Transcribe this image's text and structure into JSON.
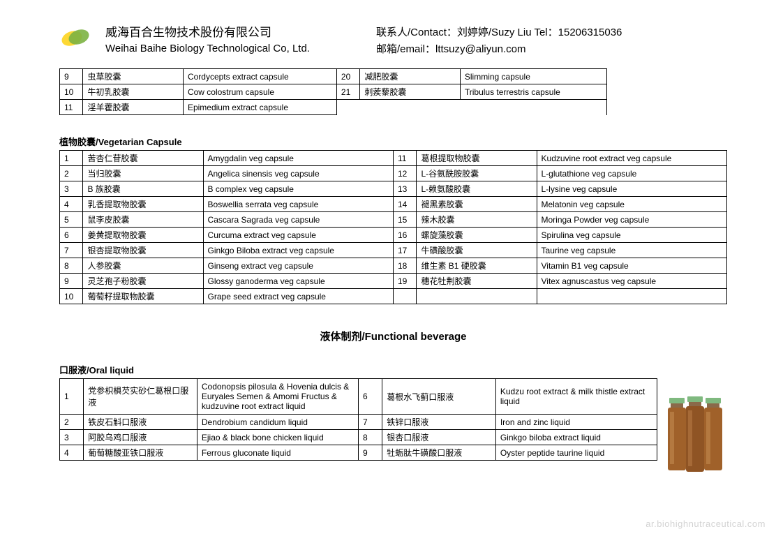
{
  "header": {
    "company_cn": "威海百合生物技术股份有限公司",
    "company_en": "Weihai Baihe Biology Technological Co, Ltd.",
    "contact_line1": "联系人/Contact：刘婷婷/Suzy Liu  Tel：15206315036",
    "contact_line2": "邮箱/email：lttsuzy@aliyun.com"
  },
  "table1": {
    "rows": [
      {
        "n1": "9",
        "cn1": "虫草胶囊",
        "en1": "Cordycepts extract capsule",
        "n2": "20",
        "cn2": "减肥胶囊",
        "en2": "Slimming capsule"
      },
      {
        "n1": "10",
        "cn1": "牛初乳胶囊",
        "en1": "Cow colostrum capsule",
        "n2": "21",
        "cn2": "刺蒺藜胶囊",
        "en2": "Tribulus terrestris capsule"
      },
      {
        "n1": "11",
        "cn1": "淫羊藿胶囊",
        "en1": "Epimedium extract capsule",
        "n2": "",
        "cn2": "",
        "en2": ""
      }
    ]
  },
  "section2_title": "植物胶囊/Vegetarian Capsule",
  "table2": {
    "rows": [
      {
        "n1": "1",
        "cn1": "苦杏仁苷胶囊",
        "en1": "Amygdalin veg capsule",
        "n2": "11",
        "cn2": "葛根提取物胶囊",
        "en2": "Kudzuvine root extract veg capsule"
      },
      {
        "n1": "2",
        "cn1": "当归胶囊",
        "en1": "Angelica sinensis veg capsule",
        "n2": "12",
        "cn2": "L-谷氨酰胺胶囊",
        "en2": "L-glutathione veg capsule"
      },
      {
        "n1": "3",
        "cn1": "B 族胶囊",
        "en1": "B complex veg capsule",
        "n2": "13",
        "cn2": "L-赖氨酸胶囊",
        "en2": "L-lysine veg capsule"
      },
      {
        "n1": "4",
        "cn1": "乳香提取物胶囊",
        "en1": "Boswellia serrata veg capsule",
        "n2": "14",
        "cn2": "褪黑素胶囊",
        "en2": "Melatonin veg capsule"
      },
      {
        "n1": "5",
        "cn1": "鼠李皮胶囊",
        "en1": "Cascara Sagrada veg capsule",
        "n2": "15",
        "cn2": "辣木胶囊",
        "en2": "Moringa Powder veg capsule"
      },
      {
        "n1": "6",
        "cn1": "姜黄提取物胶囊",
        "en1": "Curcuma extract veg capsule",
        "n2": "16",
        "cn2": "螺旋藻胶囊",
        "en2": "Spirulina veg capsule"
      },
      {
        "n1": "7",
        "cn1": "银杏提取物胶囊",
        "en1": "Ginkgo Biloba extract veg capsule",
        "n2": "17",
        "cn2": "牛磺酸胶囊",
        "en2": "Taurine veg capsule"
      },
      {
        "n1": "8",
        "cn1": "人参胶囊",
        "en1": "Ginseng extract veg capsule",
        "n2": "18",
        "cn2": "维生素 B1 硬胶囊",
        "en2": "Vitamin B1 veg capsule"
      },
      {
        "n1": "9",
        "cn1": "灵芝孢子粉胶囊",
        "en1": "Glossy ganoderma veg capsule",
        "n2": "19",
        "cn2": "穗花牡荆胶囊",
        "en2": "Vitex agnuscastus veg capsule"
      },
      {
        "n1": "10",
        "cn1": "葡萄籽提取物胶囊",
        "en1": "Grape seed extract veg capsule",
        "n2": "",
        "cn2": "",
        "en2": ""
      }
    ]
  },
  "main_heading": "液体制剂/Functional beverage",
  "section3_title": "口服液/Oral liquid",
  "table3": {
    "rows": [
      {
        "n1": "1",
        "cn1": "党参枳椇芡实砂仁葛根口服液",
        "en1": "Codonopsis pilosula & Hovenia dulcis & Euryales Semen & Amomi Fructus & kudzuvine root extract liquid",
        "n2": "6",
        "cn2": "葛根水飞蓟口服液",
        "en2": "Kudzu root extract & milk thistle extract liquid",
        "tall": true
      },
      {
        "n1": "2",
        "cn1": "铁皮石斛口服液",
        "en1": "Dendrobium candidum liquid",
        "n2": "7",
        "cn2": "铁锌口服液",
        "en2": "Iron and zinc liquid"
      },
      {
        "n1": "3",
        "cn1": "阿胶乌鸡口服液",
        "en1": "Ejiao & black bone chicken liquid",
        "n2": "8",
        "cn2": "银杏口服液",
        "en2": "Ginkgo biloba extract liquid"
      },
      {
        "n1": "4",
        "cn1": "葡萄糖酸亚铁口服液",
        "en1": "Ferrous gluconate liquid",
        "n2": "9",
        "cn2": "牡蛎肽牛磺酸口服液",
        "en2": "Oyster peptide taurine liquid"
      }
    ]
  },
  "watermark": "ar.biohighnutraceutical.com",
  "colors": {
    "logo_green": "#7cb342",
    "logo_yellow": "#fdd835",
    "vial_amber": "#a0612a",
    "vial_cap": "#7fb97f"
  }
}
